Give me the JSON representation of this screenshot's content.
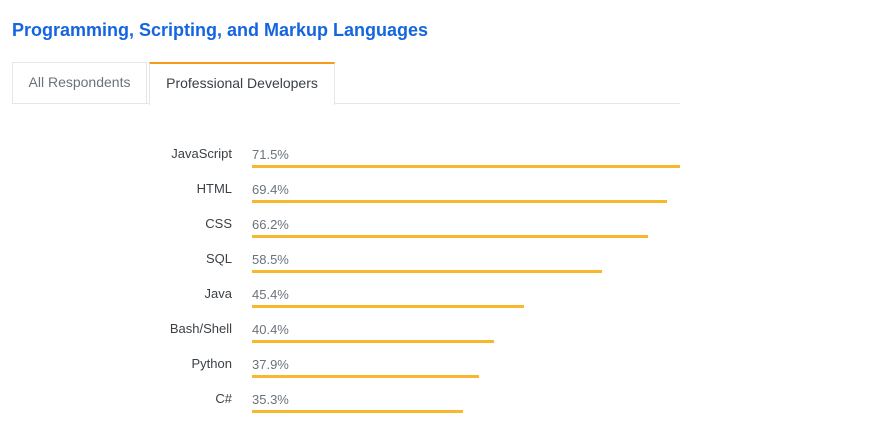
{
  "title": "Programming, Scripting, and Markup Languages",
  "tabs": [
    {
      "label": "All Respondents",
      "active": false
    },
    {
      "label": "Professional Developers",
      "active": true
    }
  ],
  "chart_data": {
    "type": "bar",
    "orientation": "horizontal",
    "categories": [
      "JavaScript",
      "HTML",
      "CSS",
      "SQL",
      "Java",
      "Bash/Shell",
      "Python",
      "C#"
    ],
    "values": [
      71.5,
      69.4,
      66.2,
      58.5,
      45.4,
      40.4,
      37.9,
      35.3
    ],
    "labels": [
      "71.5%",
      "69.4%",
      "66.2%",
      "58.5%",
      "45.4%",
      "40.4%",
      "37.9%",
      "35.3%"
    ],
    "unit": "%",
    "bar_color": "#f9b72e",
    "grid": false
  }
}
